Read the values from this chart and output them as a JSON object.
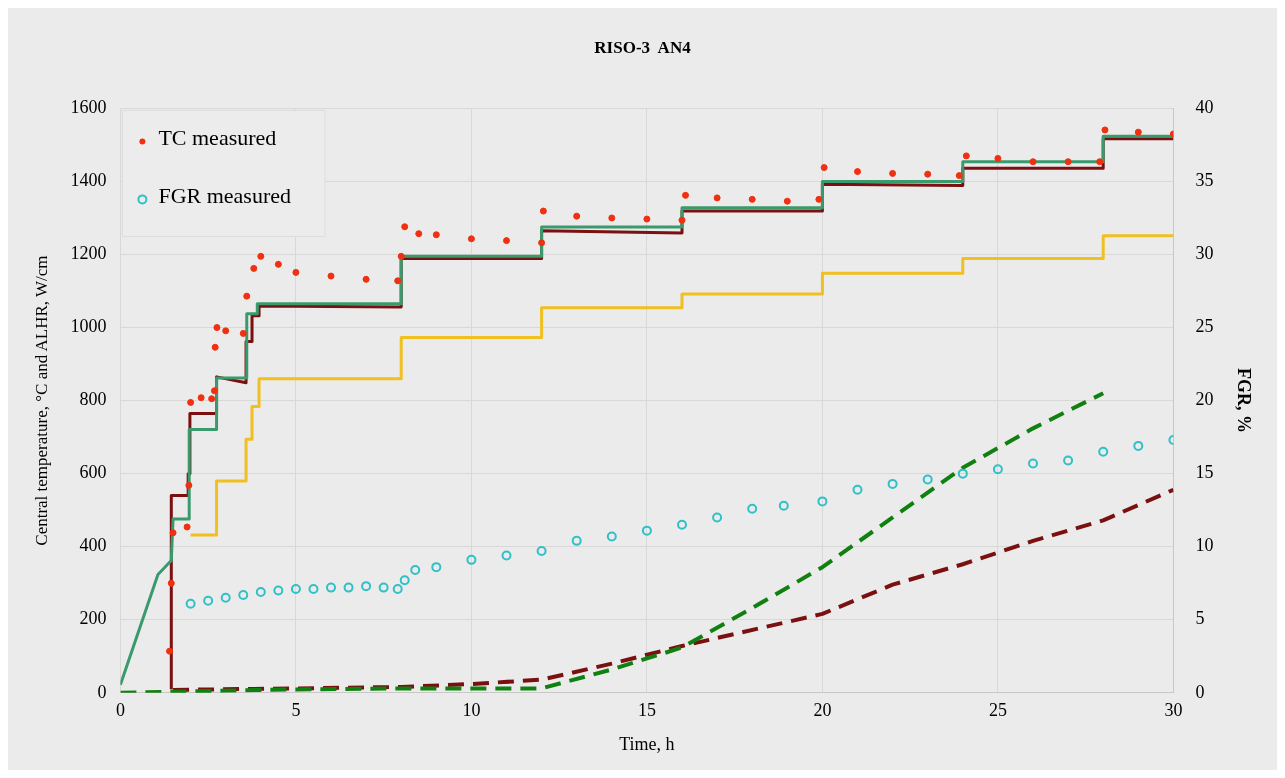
{
  "chart_data": {
    "type": "line",
    "title": "RISO-3  AN4",
    "xlabel": "Time, h",
    "ylabel": "Central temperature, °C and ALHR, W/cm",
    "y2label": "FGR, %",
    "xlim": [
      0,
      30
    ],
    "xticks": [
      0,
      5,
      10,
      15,
      20,
      25,
      30
    ],
    "ylim": [
      0,
      1600
    ],
    "yticks": [
      0,
      200,
      400,
      600,
      800,
      1000,
      1200,
      1400,
      1600
    ],
    "y2lim": [
      0,
      40
    ],
    "y2ticks": [
      0,
      5,
      10,
      15,
      20,
      25,
      30,
      35,
      40
    ],
    "grid": true,
    "legend": "top left",
    "series": [
      {
        "color": "#f0c020",
        "x": [
          2,
          2.74,
          2.74,
          3.58,
          3.58,
          3.75,
          3.75,
          3.95,
          3.95,
          8,
          8,
          12,
          12,
          16,
          16,
          20,
          20,
          24,
          24,
          28,
          28,
          30
        ],
        "values": [
          432,
          432,
          580,
          580,
          694,
          694,
          784,
          784,
          860,
          860,
          973,
          973,
          1054,
          1054,
          1092,
          1092,
          1149,
          1149,
          1189,
          1189,
          1251,
          1251
        ]
      },
      {
        "color": "#3a9a6e",
        "x": [
          0,
          1.07,
          1.45,
          1.5,
          1.96,
          1.96,
          2.74,
          2.74,
          3.58,
          3.6,
          3.9,
          3.9,
          8,
          8,
          12,
          12,
          16,
          16,
          20,
          20,
          24,
          24,
          28,
          28,
          30
        ],
        "values": [
          22,
          324,
          362,
          476,
          476,
          721,
          721,
          862,
          862,
          1038,
          1038,
          1065,
          1065,
          1195,
          1195,
          1275,
          1275,
          1328,
          1328,
          1400,
          1400,
          1454,
          1454,
          1524,
          1524
        ]
      },
      {
        "color": "#7a1010",
        "x": [
          1.45,
          1.45,
          1.93,
          1.93,
          1.98,
          1.98,
          2.74,
          2.74,
          3.58,
          3.58,
          3.75,
          3.75,
          3.95,
          3.95,
          8,
          8,
          12,
          12,
          16,
          16,
          20,
          20,
          24,
          24,
          28,
          28,
          30
        ],
        "values": [
          10,
          540,
          540,
          600,
          600,
          765,
          765,
          865,
          849,
          962,
          962,
          1032,
          1032,
          1059,
          1056,
          1189,
          1189,
          1265,
          1259,
          1319,
          1319,
          1392,
          1389,
          1436,
          1436,
          1517,
          1517
        ]
      },
      {
        "type": "scatter",
        "name": "TC measured",
        "color": "#f03010",
        "marker": "circle",
        "x": [
          1.4,
          1.45,
          1.5,
          1.9,
          1.95,
          2,
          2.3,
          2.6,
          2.68,
          2.7,
          2.75,
          3,
          3.5,
          3.6,
          3.8,
          4,
          4.5,
          5,
          6,
          7,
          7.9,
          8,
          8.1,
          8.5,
          9,
          10,
          11,
          12,
          12.05,
          13,
          14,
          15,
          16,
          16.1,
          17,
          18,
          19,
          19.9,
          20.05,
          21,
          22,
          23,
          23.9,
          24.1,
          25,
          26,
          27,
          27.9,
          28.05,
          29,
          30
        ],
        "values": [
          114,
          300,
          438,
          454,
          568,
          795,
          808,
          805,
          827,
          946,
          1000,
          991,
          984,
          1086,
          1162,
          1195,
          1173,
          1151,
          1141,
          1132,
          1128,
          1195,
          1276,
          1257,
          1254,
          1243,
          1238,
          1232,
          1319,
          1305,
          1300,
          1297,
          1294,
          1362,
          1355,
          1351,
          1346,
          1351,
          1438,
          1427,
          1422,
          1420,
          1416,
          1470,
          1463,
          1454,
          1454,
          1454,
          1541,
          1535,
          1530
        ]
      },
      {
        "type": "scatter",
        "name": "FGR measured",
        "color": "#30c0c8",
        "marker": "circle",
        "axis": "y2",
        "x": [
          2,
          2.5,
          3,
          3.5,
          4,
          4.5,
          5,
          5.5,
          6,
          6.5,
          7,
          7.5,
          7.9,
          8.1,
          8.4,
          9,
          10,
          11,
          12,
          13,
          14,
          15,
          16,
          17,
          18,
          18.9,
          20,
          21,
          22,
          23,
          24,
          25,
          26,
          27,
          28,
          29,
          30
        ],
        "values": [
          6.1,
          6.3,
          6.5,
          6.7,
          6.9,
          7,
          7.1,
          7.1,
          7.2,
          7.2,
          7.3,
          7.2,
          7.1,
          7.7,
          8.4,
          8.6,
          9.1,
          9.4,
          9.7,
          10.4,
          10.7,
          11.1,
          11.5,
          12,
          12.6,
          12.8,
          13.1,
          13.9,
          14.3,
          14.6,
          15,
          15.3,
          15.7,
          15.9,
          16.5,
          16.9,
          17.3
        ]
      },
      {
        "color": "#108010",
        "line_style": "dashed",
        "axis": "y2",
        "x": [
          0,
          4,
          8,
          12,
          14,
          16,
          18,
          20,
          22,
          24,
          26,
          28
        ],
        "values": [
          0,
          0.2,
          0.3,
          0.3,
          1.6,
          3.1,
          5.8,
          8.6,
          12,
          15.4,
          18.1,
          20.5
        ]
      },
      {
        "color": "#7a1010",
        "line_style": "dashed",
        "axis": "y2",
        "x": [
          1.5,
          5,
          8,
          10,
          12,
          14,
          16,
          20,
          22,
          24,
          26,
          28,
          30
        ],
        "values": [
          0.2,
          0.3,
          0.4,
          0.6,
          0.9,
          2,
          3.2,
          5.4,
          7.4,
          8.8,
          10.4,
          11.8,
          13.9
        ]
      }
    ]
  }
}
